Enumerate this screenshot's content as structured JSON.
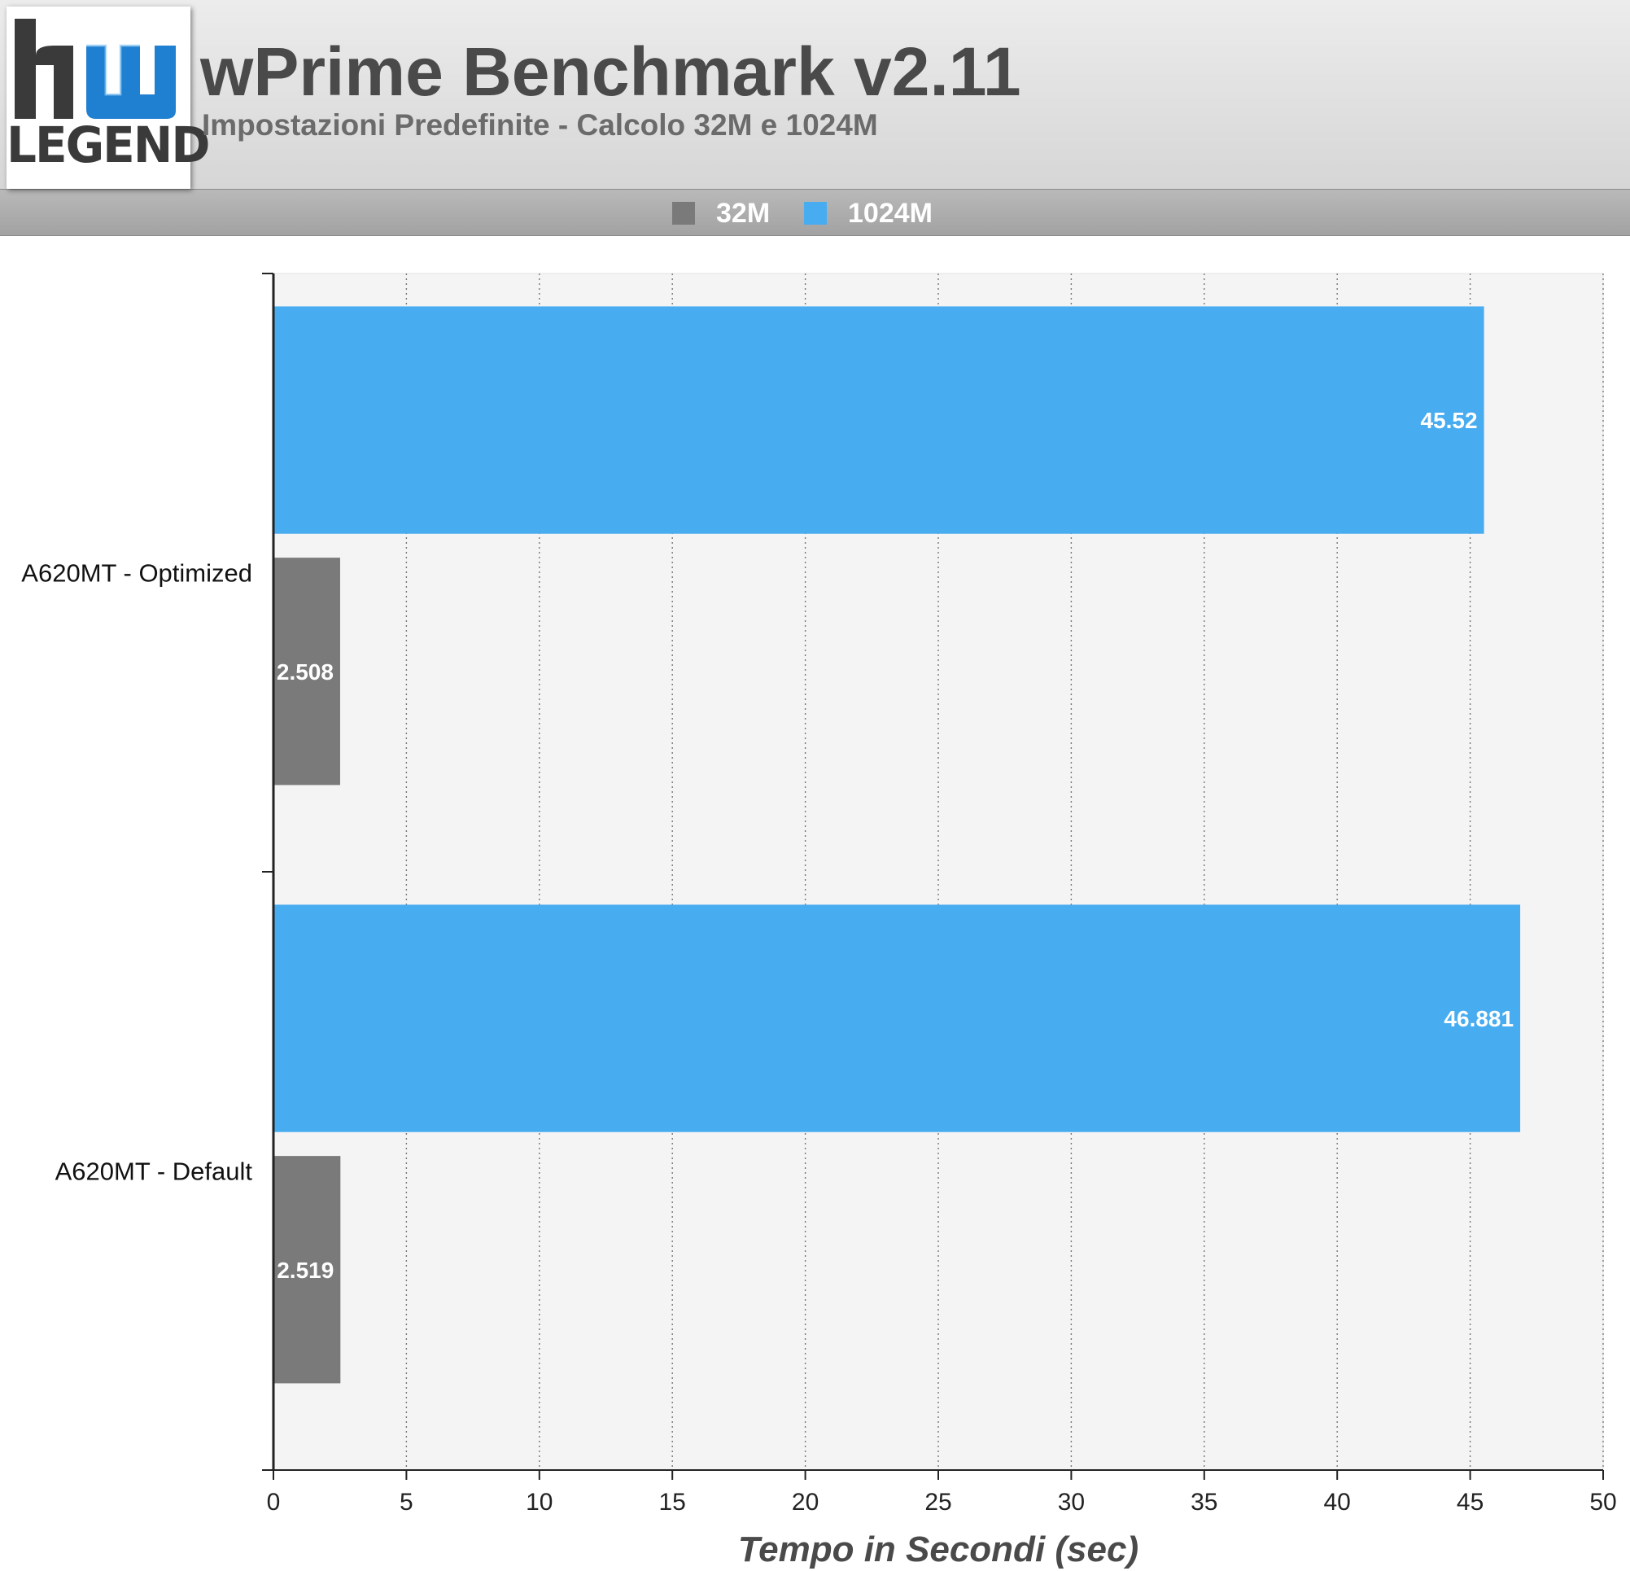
{
  "header": {
    "title": "wPrime Benchmark v2.11",
    "subtitle": "Impostazioni Predefinite - Calcolo 32M e 1024M",
    "logo_text": "LEGEND"
  },
  "colors": {
    "series_32m": "#7a7a7a",
    "series_1024m": "#48acf0",
    "plot_background": "#f4f4f4",
    "logo_blue": "#1f7fd0"
  },
  "chart_data": {
    "type": "bar",
    "orientation": "horizontal",
    "title": "wPrime Benchmark v2.11",
    "subtitle": "Impostazioni Predefinite - Calcolo 32M e 1024M",
    "categories": [
      "A620MT - Optimized",
      "A620MT - Default"
    ],
    "series": [
      {
        "name": "1024M",
        "values": [
          45.52,
          46.881
        ],
        "labels": [
          "45.52",
          "46.881"
        ]
      },
      {
        "name": "32M",
        "values": [
          2.508,
          2.519
        ],
        "labels": [
          "2.508",
          "2.519"
        ]
      }
    ],
    "legend": [
      "32M",
      "1024M"
    ],
    "legend_position": "top",
    "xlabel": "Tempo in Secondi (sec)",
    "ylabel": "",
    "xlim": [
      0,
      50
    ],
    "xticks": [
      0,
      5,
      10,
      15,
      20,
      25,
      30,
      35,
      40,
      45,
      50
    ],
    "grid": "vertical dotted"
  }
}
